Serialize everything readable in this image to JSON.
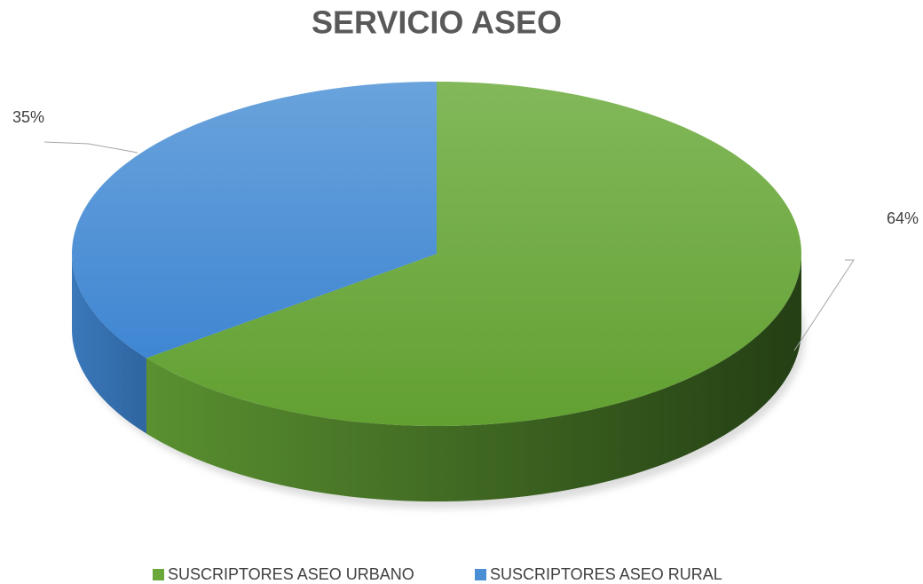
{
  "chart_data": {
    "type": "pie",
    "title": "SERVICIO ASEO",
    "categories": [
      "SUSCRIPTORES ASEO URBANO",
      "SUSCRIPTORES ASEO RURAL"
    ],
    "values": [
      64,
      35
    ],
    "value_labels": [
      "64%",
      "35%"
    ],
    "colors": [
      "#6aa83a",
      "#4a8fd6"
    ],
    "legend": "bottom"
  }
}
